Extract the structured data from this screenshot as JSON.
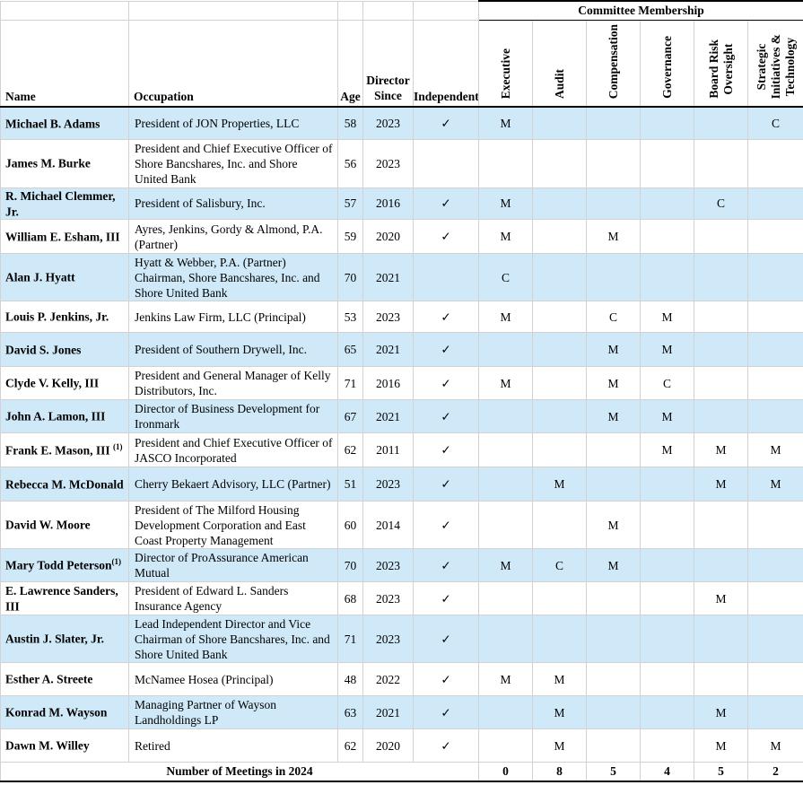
{
  "header": {
    "committee_group_label": "Committee Membership",
    "name_label": "Name",
    "occupation_label": "Occupation",
    "age_label": "Age",
    "director_since_label": "Director\nSince",
    "independent_label": "Independent",
    "committee_columns": [
      "Executive",
      "Audit",
      "Compensation",
      "Governance",
      "Board Risk\nOversight",
      "Strategic\nInitiatives &\nTechnology"
    ]
  },
  "check_glyph": "✓",
  "rows": [
    {
      "name": "Michael B. Adams",
      "sup": "",
      "occupation": "President of JON Properties, LLC",
      "age": "58",
      "since": "2023",
      "independent": true,
      "committees": [
        "M",
        "",
        "",
        "",
        "",
        "C"
      ]
    },
    {
      "name": "James M. Burke",
      "sup": "",
      "occupation": "President and Chief Executive Officer of Shore Bancshares, Inc. and Shore United Bank",
      "age": "56",
      "since": "2023",
      "independent": false,
      "committees": [
        "",
        "",
        "",
        "",
        "",
        ""
      ]
    },
    {
      "name": "R. Michael Clemmer, Jr.",
      "sup": "",
      "occupation": "President of Salisbury, Inc.",
      "age": "57",
      "since": "2016",
      "independent": true,
      "committees": [
        "M",
        "",
        "",
        "",
        "C",
        ""
      ]
    },
    {
      "name": "William E. Esham, III",
      "sup": "",
      "occupation": "Ayres, Jenkins, Gordy & Almond, P.A. (Partner)",
      "age": "59",
      "since": "2020",
      "independent": true,
      "committees": [
        "M",
        "",
        "M",
        "",
        "",
        ""
      ]
    },
    {
      "name": "Alan J. Hyatt",
      "sup": "",
      "occupation": "Hyatt & Webber, P.A.  (Partner)\nChairman, Shore Bancshares, Inc. and Shore United Bank",
      "age": "70",
      "since": "2021",
      "independent": false,
      "committees": [
        "C",
        "",
        "",
        "",
        "",
        ""
      ]
    },
    {
      "name": "Louis P. Jenkins, Jr.",
      "sup": "",
      "occupation": "Jenkins Law Firm, LLC (Principal)",
      "age": "53",
      "since": "2023",
      "independent": true,
      "committees": [
        "M",
        "",
        "C",
        "M",
        "",
        ""
      ]
    },
    {
      "name": "David S. Jones",
      "sup": "",
      "occupation": "President of Southern Drywell, Inc.",
      "age": "65",
      "since": "2021",
      "independent": true,
      "committees": [
        "",
        "",
        "M",
        "M",
        "",
        ""
      ]
    },
    {
      "name": "Clyde V. Kelly, III",
      "sup": "",
      "occupation": "President and General Manager of Kelly Distributors, Inc.",
      "age": "71",
      "since": "2016",
      "independent": true,
      "committees": [
        "M",
        "",
        "M",
        "C",
        "",
        ""
      ]
    },
    {
      "name": "John A. Lamon, III",
      "sup": "",
      "occupation": "Director of Business Development for Ironmark",
      "age": "67",
      "since": "2021",
      "independent": true,
      "committees": [
        "",
        "",
        "M",
        "M",
        "",
        ""
      ]
    },
    {
      "name": "Frank E. Mason, III ",
      "sup": "(1)",
      "occupation": "President and Chief Executive Officer of JASCO Incorporated",
      "age": "62",
      "since": "2011",
      "independent": true,
      "committees": [
        "",
        "",
        "",
        "M",
        "M",
        "M"
      ]
    },
    {
      "name": "Rebecca M. McDonald",
      "sup": "",
      "occupation": "Cherry Bekaert Advisory, LLC (Partner)",
      "age": "51",
      "since": "2023",
      "independent": true,
      "committees": [
        "",
        "M",
        "",
        "",
        "M",
        "M"
      ]
    },
    {
      "name": "David W. Moore",
      "sup": "",
      "occupation": "President of The Milford Housing Development Corporation and East Coast Property Management",
      "age": "60",
      "since": "2014",
      "independent": true,
      "committees": [
        "",
        "",
        "M",
        "",
        "",
        ""
      ]
    },
    {
      "name": "Mary Todd Peterson",
      "sup": "(1)",
      "occupation": "Director of ProAssurance American Mutual",
      "age": "70",
      "since": "2023",
      "independent": true,
      "committees": [
        "M",
        "C",
        "M",
        "",
        "",
        ""
      ]
    },
    {
      "name": "E. Lawrence Sanders, III",
      "sup": "",
      "occupation": "President of Edward L. Sanders Insurance Agency",
      "age": "68",
      "since": "2023",
      "independent": true,
      "committees": [
        "",
        "",
        "",
        "",
        "M",
        ""
      ]
    },
    {
      "name": "Austin J. Slater, Jr.",
      "sup": "",
      "occupation": "Lead Independent Director and Vice Chairman of Shore Bancshares, Inc. and Shore United Bank",
      "age": "71",
      "since": "2023",
      "independent": true,
      "committees": [
        "",
        "",
        "",
        "",
        "",
        ""
      ]
    },
    {
      "name": "Esther A. Streete",
      "sup": "",
      "occupation": "McNamee Hosea (Principal)",
      "age": "48",
      "since": "2022",
      "independent": true,
      "committees": [
        "M",
        "M",
        "",
        "",
        "",
        ""
      ]
    },
    {
      "name": "Konrad M. Wayson",
      "sup": "",
      "occupation": "Managing Partner of Wayson Landholdings LP",
      "age": "63",
      "since": "2021",
      "independent": true,
      "committees": [
        "",
        "M",
        "",
        "",
        "M",
        ""
      ]
    },
    {
      "name": "Dawn M. Willey",
      "sup": "",
      "occupation": "Retired",
      "age": "62",
      "since": "2020",
      "independent": true,
      "committees": [
        "",
        "M",
        "",
        "",
        "M",
        "M"
      ]
    }
  ],
  "footer": {
    "label": "Number of Meetings in 2024",
    "values": [
      "0",
      "8",
      "5",
      "4",
      "5",
      "2"
    ]
  },
  "colors": {
    "row_alt": "#cfe9f8",
    "grid": "#d2d2d2",
    "rule": "#000000"
  }
}
